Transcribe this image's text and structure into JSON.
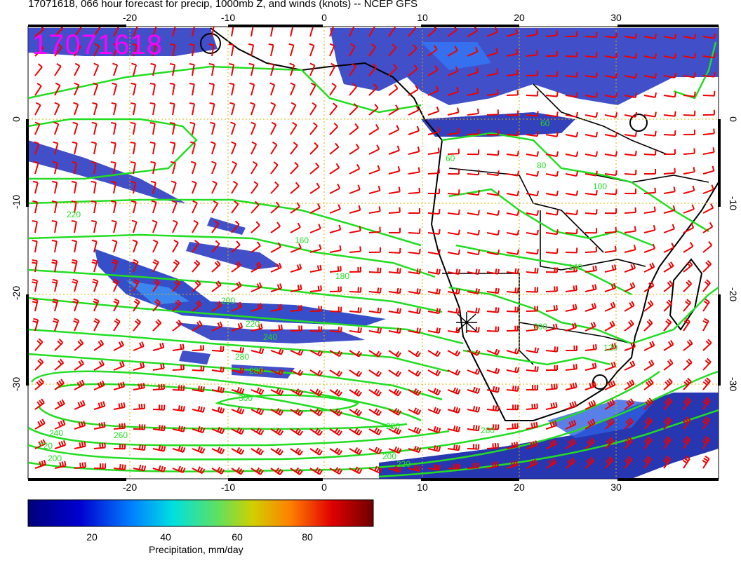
{
  "title": "17071618, 066 hour forecast for precip, 1000mb Z, and winds (knots) -- NCEP GFS",
  "stamp": "17071618",
  "colors": {
    "contour": "#22dd22",
    "barb": "#ee0000",
    "coast": "#000000",
    "grid": "#d8b000",
    "stamp": "#ff00ff"
  },
  "map": {
    "lon_ticks": [
      "-20",
      "-10",
      "0",
      "10",
      "20",
      "30"
    ],
    "lat_ticks": [
      "0",
      "-10",
      "-20",
      "-30"
    ],
    "height_contours": [
      "60",
      "80",
      "100",
      "120",
      "140",
      "160",
      "180",
      "200",
      "220",
      "240",
      "260",
      "280",
      "300"
    ]
  },
  "colorbar": {
    "title": "Precipitation, mm/day",
    "ticks": [
      "20",
      "40",
      "60",
      "80"
    ],
    "range": [
      0,
      100
    ]
  }
}
